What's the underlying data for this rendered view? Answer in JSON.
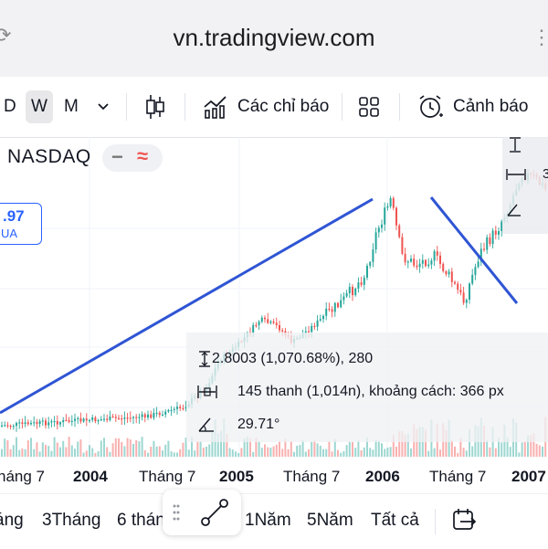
{
  "browser": {
    "url": "vn.tradingview.com"
  },
  "toolbar": {
    "intervals": [
      "D",
      "W",
      "M"
    ],
    "active_interval": "W",
    "indicators_label": "Các chỉ báo",
    "alerts_label": "Cảnh báo"
  },
  "symbol": {
    "name": "NASDAQ",
    "pill_dash": "−",
    "pill_wave": "≈"
  },
  "price_box": {
    "value": ".97",
    "currency": "UA"
  },
  "measurement": {
    "price_line": "2.8003 (1,070.68%), 280",
    "bars_line": "145 thanh (1,014n), khoảng cách: 366 px",
    "angle_line": "29.71°"
  },
  "right_panel": {
    "digit": "3"
  },
  "time_axis": [
    "háng 7",
    "2004",
    "Tháng 7",
    "2005",
    "Tháng 7",
    "2006",
    "Tháng 7",
    "2007"
  ],
  "bottom_bar": {
    "ranges": [
      "áng",
      "3Tháng",
      "6 thán",
      "1Năm",
      "5Năm",
      "Tất cả"
    ]
  },
  "colors": {
    "up": "#26a69a",
    "down": "#ef5350",
    "drawing": "#2f55d4",
    "accent": "#2962ff"
  }
}
